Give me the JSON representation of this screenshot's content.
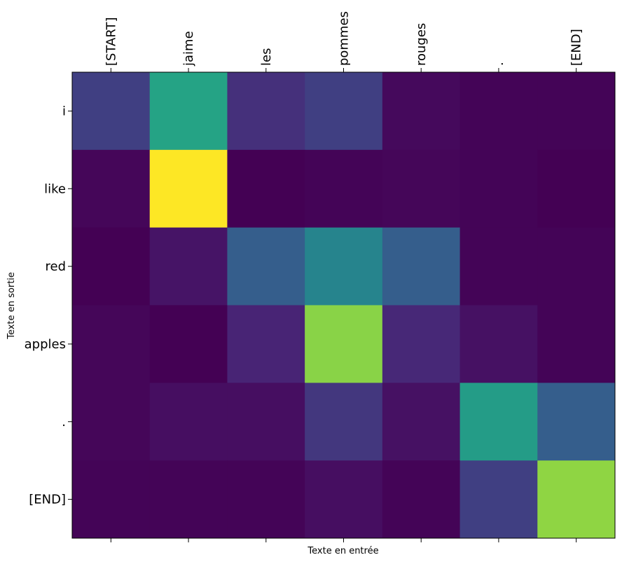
{
  "chart_data": {
    "type": "heatmap",
    "title": "",
    "xlabel": "Texte en entrée",
    "ylabel": "Texte en sortie",
    "x_tick_position": "top",
    "grid": false,
    "colormap": "viridis",
    "value_range": [
      0,
      1
    ],
    "x_categories": [
      "[START]",
      "jaime",
      "les",
      "pommes",
      "rouges",
      ".",
      "[END]"
    ],
    "y_categories": [
      "i",
      "like",
      "red",
      "apples",
      ".",
      "[END]"
    ],
    "values": [
      [
        0.2,
        0.58,
        0.16,
        0.2,
        0.03,
        0.01,
        0.01
      ],
      [
        0.02,
        1.0,
        0.0,
        0.01,
        0.02,
        0.01,
        0.0
      ],
      [
        0.0,
        0.07,
        0.3,
        0.45,
        0.3,
        0.01,
        0.01
      ],
      [
        0.02,
        0.0,
        0.13,
        0.82,
        0.14,
        0.06,
        0.01
      ],
      [
        0.02,
        0.05,
        0.05,
        0.18,
        0.06,
        0.55,
        0.3
      ],
      [
        0.01,
        0.01,
        0.01,
        0.05,
        0.01,
        0.2,
        0.83
      ]
    ]
  }
}
